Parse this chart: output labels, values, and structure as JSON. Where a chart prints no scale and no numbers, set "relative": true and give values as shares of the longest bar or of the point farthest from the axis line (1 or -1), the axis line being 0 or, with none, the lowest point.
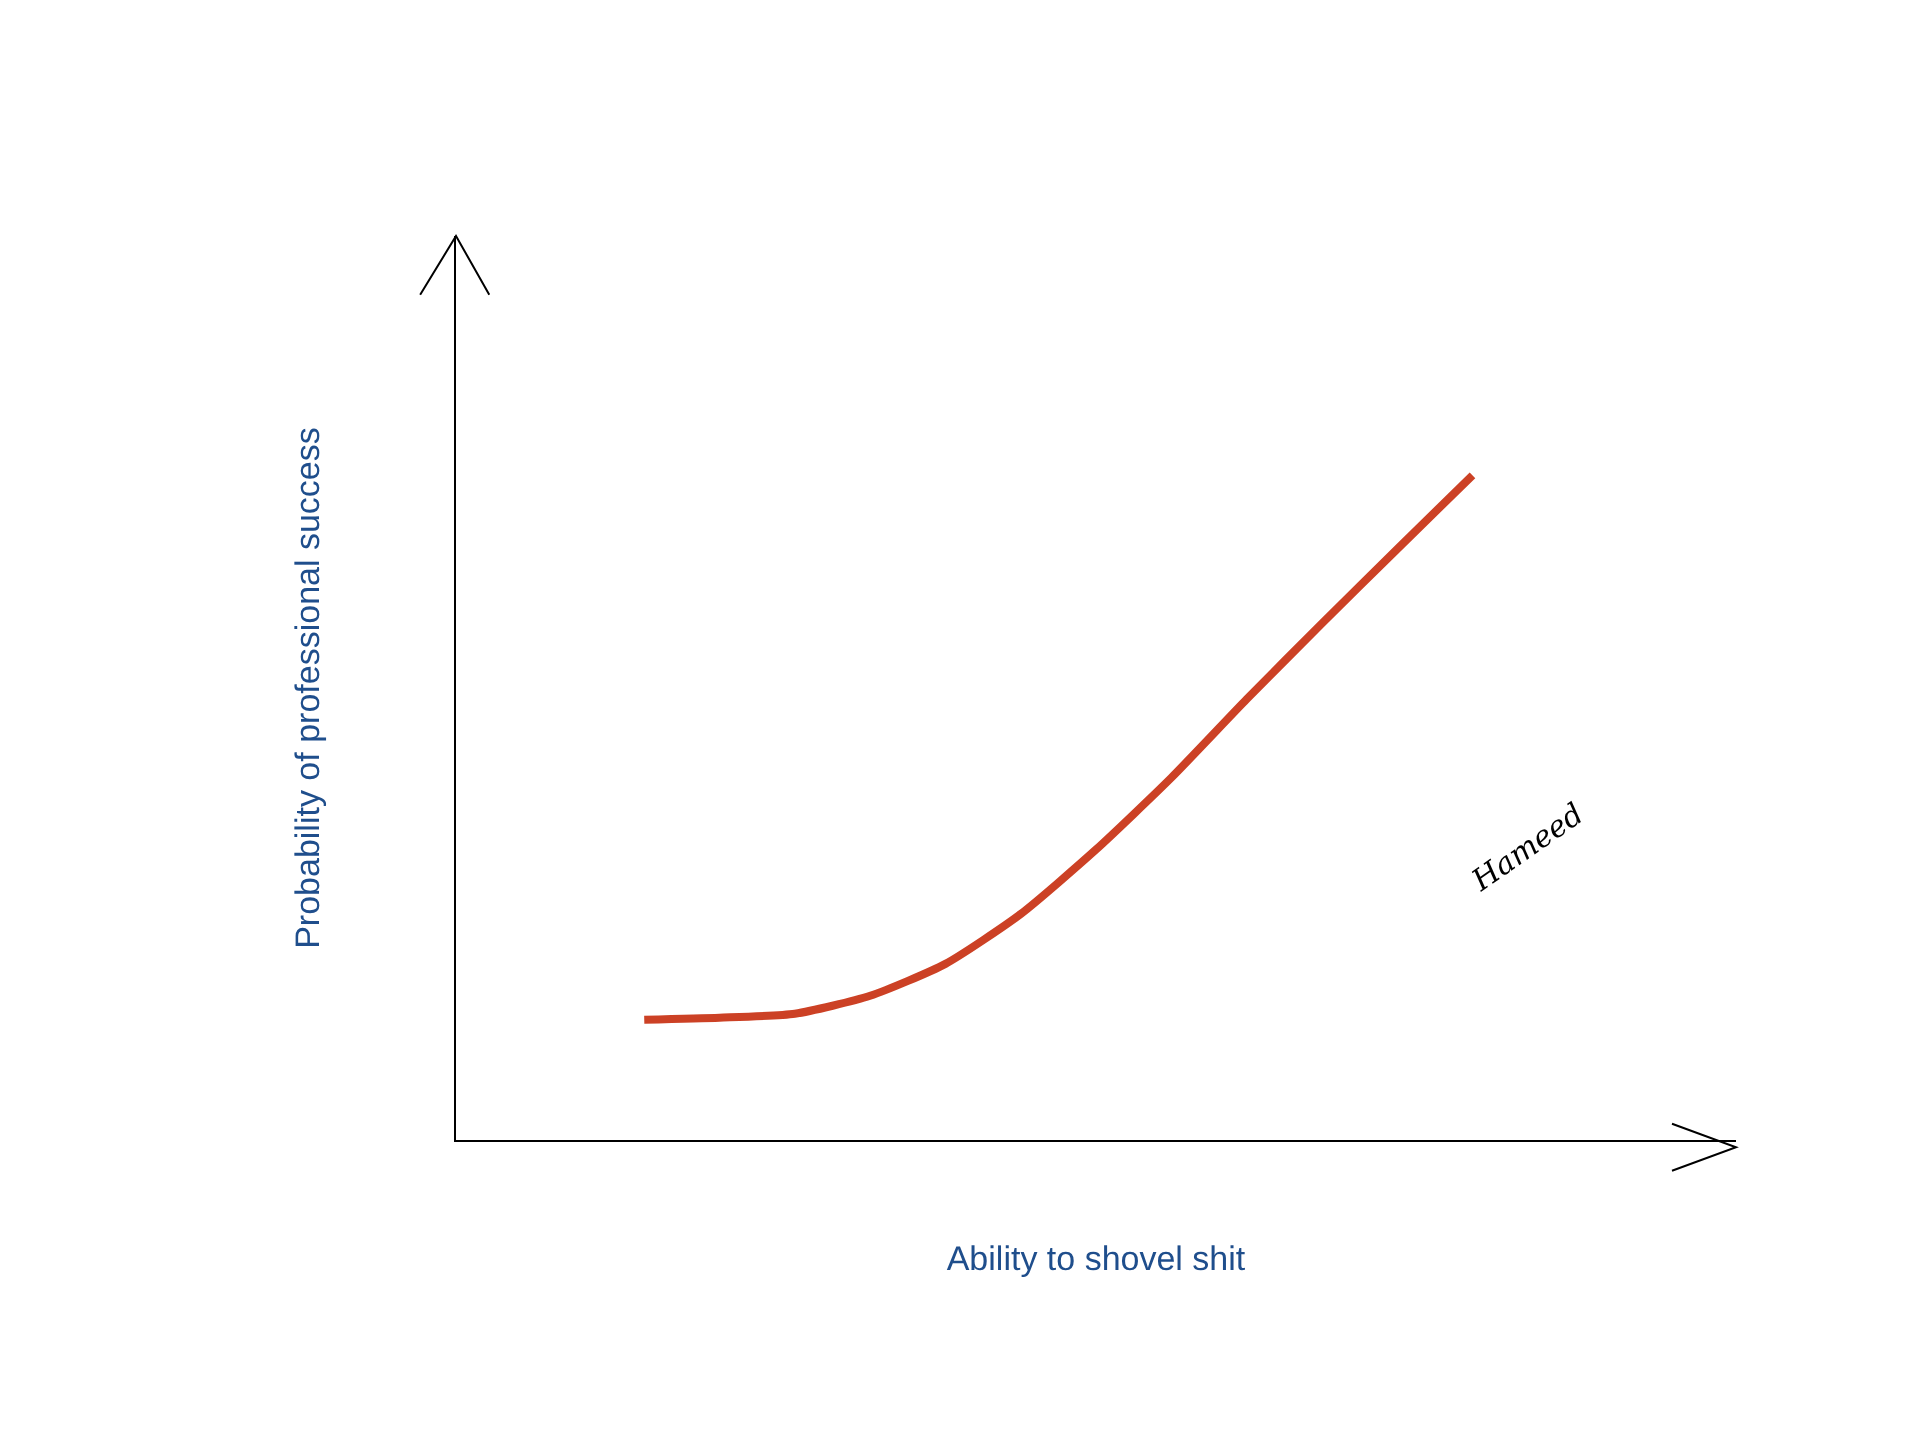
{
  "chart_data": {
    "type": "line",
    "relative": true,
    "xlabel": "Ability to shovel shit",
    "ylabel": "Probability of professional success",
    "annotations": [
      "Hameed"
    ],
    "categories": [
      null,
      null,
      null,
      null,
      null,
      null,
      null,
      null,
      null,
      null,
      null,
      null,
      null,
      null,
      null,
      null,
      null
    ],
    "series": [
      {
        "color": "#cc4125",
        "values": [
          null,
          null,
          0.181,
          0.184,
          0.19,
          0.217,
          0.265,
          0.34,
          0.437,
          0.545,
          0.663,
          0.777,
          0.889,
          1,
          null,
          null,
          null
        ]
      }
    ]
  }
}
